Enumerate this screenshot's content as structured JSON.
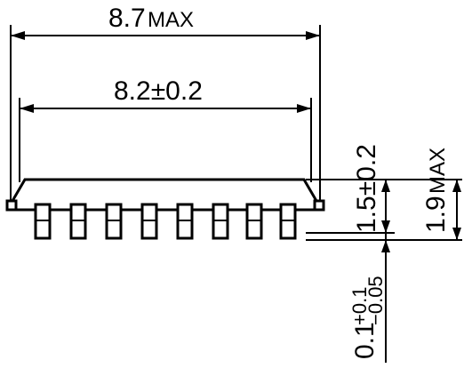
{
  "dimensions": {
    "overall_length_max": "8.7",
    "overall_length_max_suffix": "MAX",
    "body_length": "8.2±0.2",
    "body_height": "1.5±0.2",
    "overall_height_max": "1.9",
    "overall_height_max_suffix": "MAX",
    "standoff_nominal": "0.1",
    "standoff_tol_upper": "+0.1",
    "standoff_tol_lower": "−0.05"
  }
}
